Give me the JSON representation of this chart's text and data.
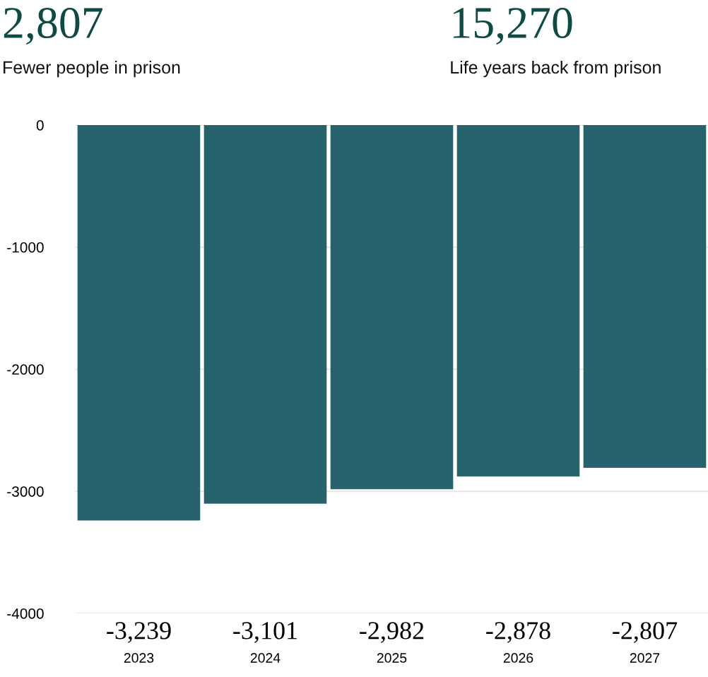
{
  "chart_data": {
    "type": "bar",
    "categories": [
      "2023",
      "2024",
      "2025",
      "2026",
      "2027"
    ],
    "values": [
      -3239,
      -3101,
      -2982,
      -2878,
      -2807
    ],
    "value_labels": [
      "-3,239",
      "-3,101",
      "-2,982",
      "-2,878",
      "-2,807"
    ],
    "color": "#27636d",
    "ylim": [
      -4000,
      0
    ],
    "yticks": [
      0,
      -1000,
      -2000,
      -3000,
      -4000
    ],
    "grid": "y",
    "annotations": [
      "2,807",
      "Fewer people in prison",
      "15,270",
      "Life years back from prison"
    ]
  }
}
